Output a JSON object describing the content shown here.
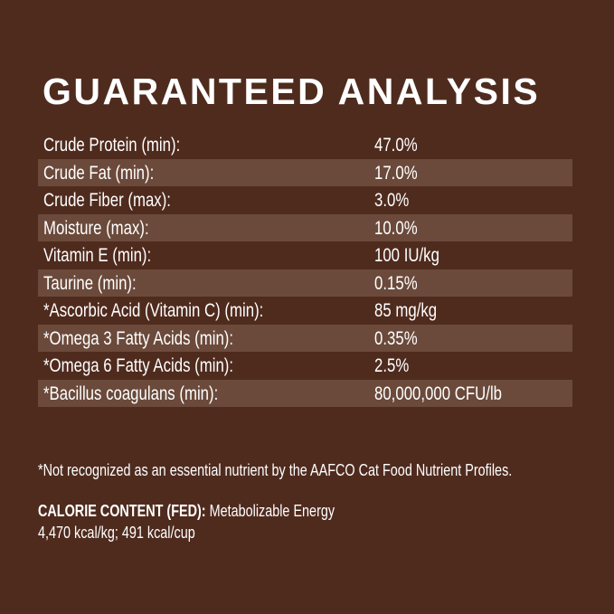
{
  "title": "GUARANTEED ANALYSIS",
  "rows": [
    {
      "label": "Crude Protein (min):",
      "value": "47.0%"
    },
    {
      "label": "Crude Fat (min):",
      "value": "17.0%"
    },
    {
      "label": "Crude Fiber (max):",
      "value": "3.0%"
    },
    {
      "label": "Moisture (max):",
      "value": "10.0%"
    },
    {
      "label": "Vitamin E (min):",
      "value": "100 IU/kg"
    },
    {
      "label": "Taurine (min):",
      "value": "0.15%"
    },
    {
      "label": "*Ascorbic Acid (Vitamin C) (min):",
      "value": "85 mg/kg"
    },
    {
      "label": "*Omega 3 Fatty Acids (min):",
      "value": "0.35%"
    },
    {
      "label": "*Omega 6 Fatty Acids (min):",
      "value": "2.5%"
    },
    {
      "label": "*Bacillus coagulans (min):",
      "value": "80,000,000 CFU/lb"
    }
  ],
  "footnote": "*Not recognized as an essential nutrient by the AAFCO Cat Food Nutrient Profiles.",
  "calorie": {
    "heading": "CALORIE CONTENT (FED):",
    "text": " Metabolizable Energy",
    "values": "4,470 kcal/kg; 491 kcal/cup"
  },
  "colors": {
    "background": "#4f2b1e",
    "stripe": "#6b4a3b",
    "text": "#ffffff"
  }
}
